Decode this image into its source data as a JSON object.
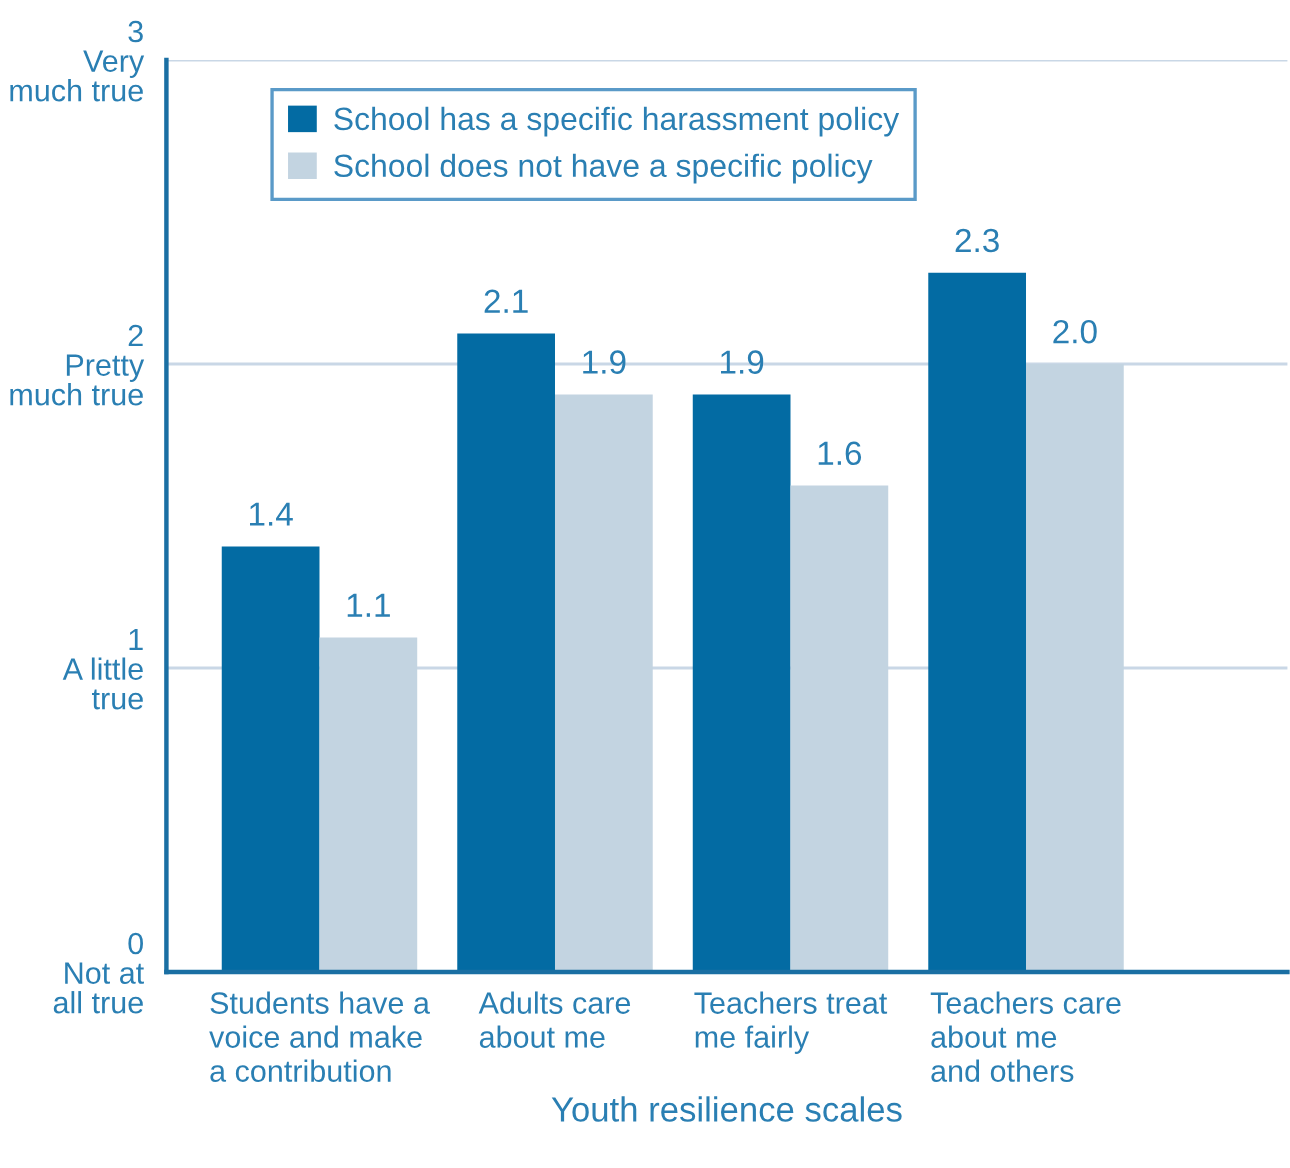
{
  "chart_data": {
    "type": "bar",
    "xlabel": "Youth resilience scales",
    "categories": [
      "Students have a\nvoice and make\na contribution",
      "Adults care\nabout me",
      "Teachers treat\nme fairly",
      "Teachers care\nabout me\nand others"
    ],
    "series": [
      {
        "name": "School has a specific harassment policy",
        "color": "#036ba3",
        "values": [
          1.4,
          2.1,
          1.9,
          2.3
        ],
        "value_labels": [
          "1.4",
          "2.1",
          "1.9",
          "2.3"
        ]
      },
      {
        "name": "School does not have a specific policy",
        "color": "#c3d4e1",
        "values": [
          1.1,
          1.9,
          1.6,
          2.0
        ],
        "value_labels": [
          "1.1",
          "1.9",
          "1.6",
          "2.0"
        ]
      }
    ],
    "ylim": [
      0,
      3
    ],
    "yticks": [
      {
        "value": 0,
        "label": "0\nNot at\nall true"
      },
      {
        "value": 1,
        "label": "1\nA little\ntrue"
      },
      {
        "value": 2,
        "label": "2\nPretty\nmuch true"
      },
      {
        "value": 3,
        "label": "3\nVery\nmuch true"
      }
    ],
    "grid": "y",
    "legend": "top left"
  }
}
